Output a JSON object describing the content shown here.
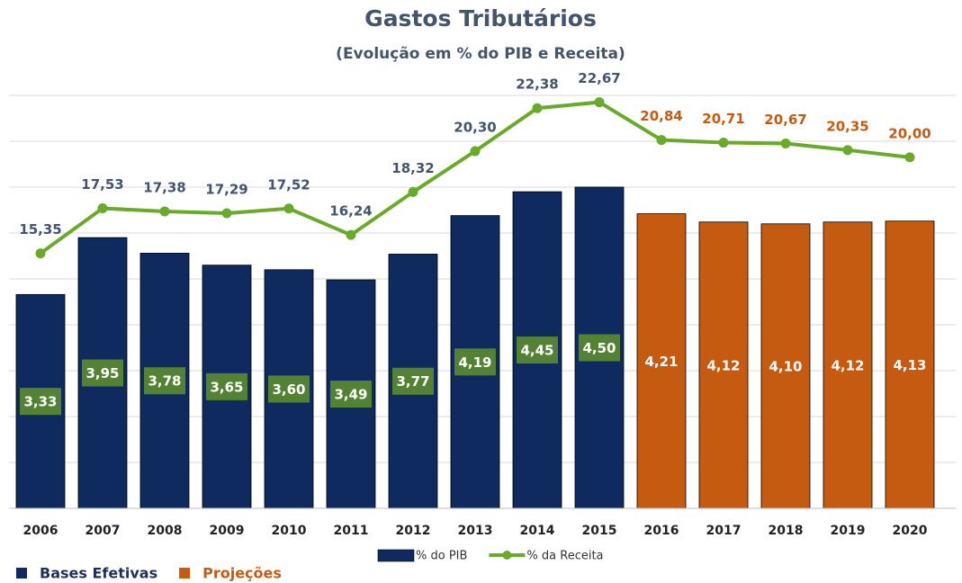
{
  "chart_data": {
    "type": "bar_line",
    "title": "Gastos Tributários",
    "subtitle": "(Evolução em % do PIB e Receita)",
    "categories": [
      "2006",
      "2007",
      "2008",
      "2009",
      "2010",
      "2011",
      "2012",
      "2013",
      "2014",
      "2015",
      "2016",
      "2017",
      "2018",
      "2019",
      "2020"
    ],
    "series": [
      {
        "name": "% do PIB",
        "type": "bar",
        "color": "#0e2a5e",
        "colors": [
          "#0e2a5e",
          "#0e2a5e",
          "#0e2a5e",
          "#0e2a5e",
          "#0e2a5e",
          "#0e2a5e",
          "#0e2a5e",
          "#0e2a5e",
          "#0e2a5e",
          "#0e2a5e",
          "#c55a11",
          "#c55a11",
          "#c55a11",
          "#c55a11",
          "#c55a11"
        ],
        "values": [
          3.33,
          3.95,
          3.78,
          3.65,
          3.6,
          3.49,
          3.77,
          4.19,
          4.45,
          4.5,
          4.21,
          4.12,
          4.1,
          4.12,
          4.13
        ],
        "value_labels": [
          "3,33",
          "3,95",
          "3,78",
          "3,65",
          "3,60",
          "3,49",
          "3,77",
          "4,19",
          "4,45",
          "4,50",
          "4,21",
          "4,12",
          "4,10",
          "4,12",
          "4,13"
        ]
      },
      {
        "name": "% da Receita",
        "type": "line",
        "axis": "y2",
        "color": "#6aaa2a",
        "values": [
          15.35,
          17.53,
          17.38,
          17.29,
          17.52,
          16.24,
          18.32,
          20.3,
          22.38,
          22.67,
          20.84,
          20.71,
          20.67,
          20.35,
          20.0
        ],
        "value_labels": [
          "15,35",
          "17,53",
          "17,38",
          "17,29",
          "17,52",
          "16,24",
          "18,32",
          "20,30",
          "22,38",
          "22,67",
          "20,84",
          "20,71",
          "20,67",
          "20,35",
          "20,00"
        ]
      }
    ],
    "ylim": [
      1,
      5.5
    ],
    "yticks": [
      1,
      1.5,
      2,
      2.5,
      3,
      3.5,
      4,
      4.5,
      5,
      5.5
    ],
    "y2lim": [
      3,
      23
    ],
    "grid": true,
    "legend": "bottom",
    "color_legend": [
      {
        "name": "Bases Efetivas",
        "color": "#0e2a5e"
      },
      {
        "name": "Projeções",
        "color": "#c55a11"
      }
    ]
  }
}
